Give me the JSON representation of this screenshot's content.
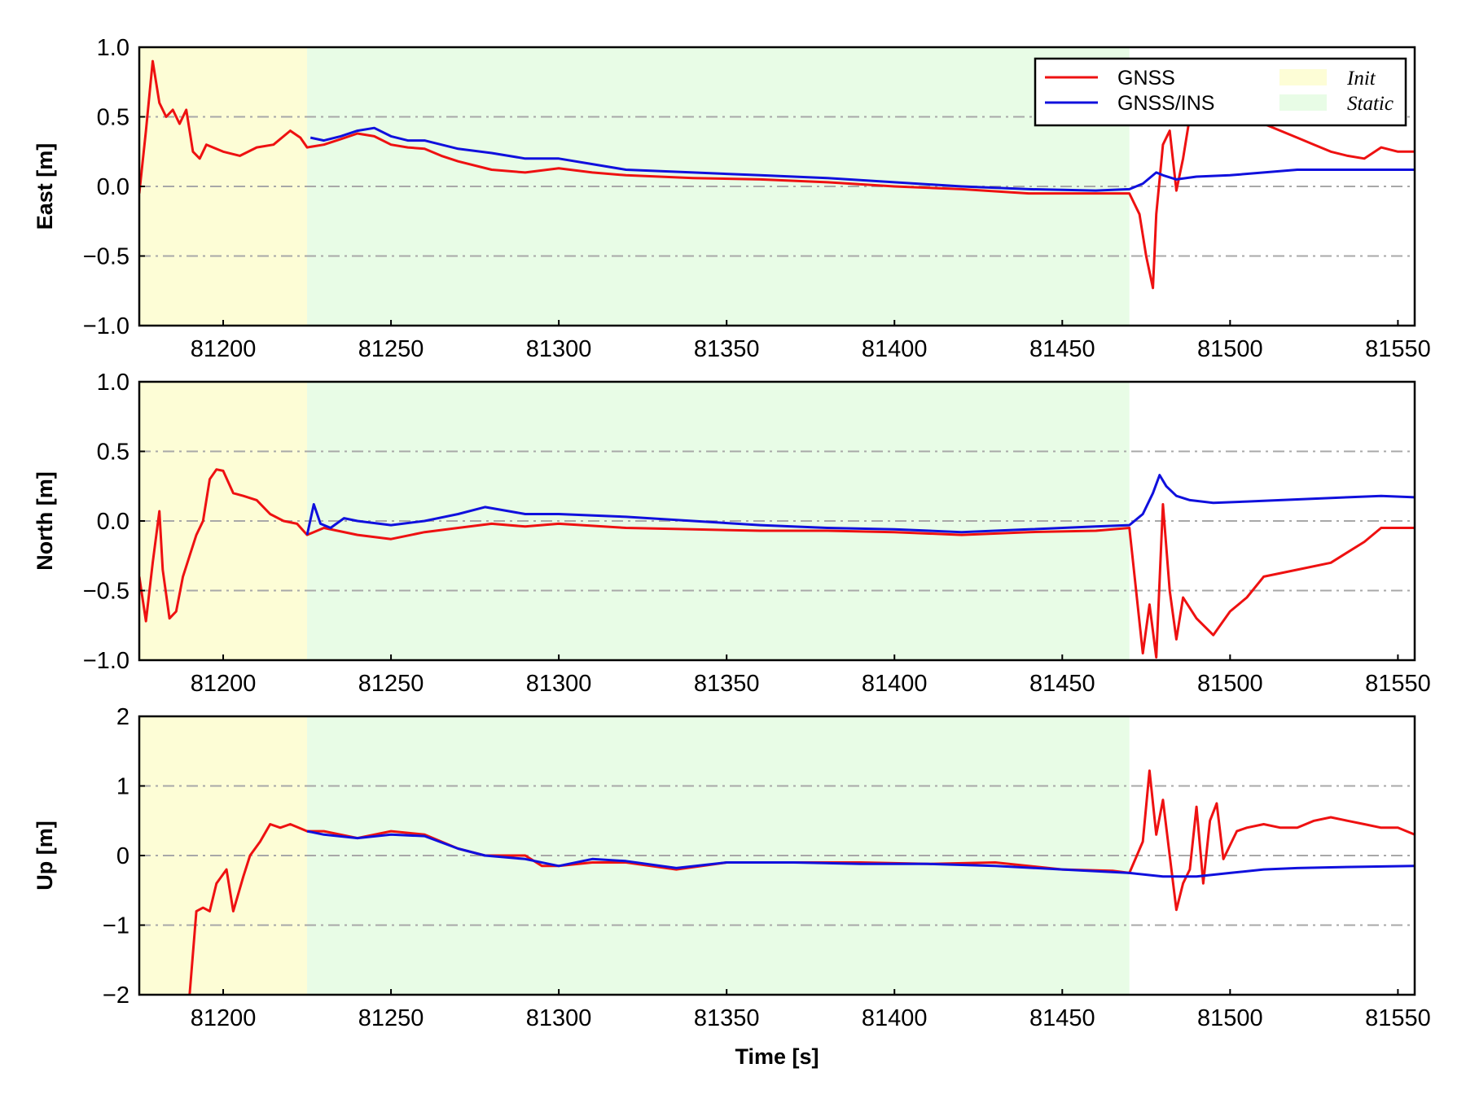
{
  "colors": {
    "gnss": "#ee1111",
    "gnss_ins": "#1010dd",
    "init_region": "#fdfdd6",
    "static_region": "#e8fce6",
    "grid": "#a8a8a8"
  },
  "chart_data": [
    {
      "type": "line",
      "ylabel": "East [m]",
      "xlabel": "",
      "xlim": [
        81175,
        81555
      ],
      "ylim": [
        -1.0,
        1.0
      ],
      "xticks": [
        81200,
        81250,
        81300,
        81350,
        81400,
        81450,
        81500,
        81550
      ],
      "xtick_labels": [
        "81200",
        "81250",
        "81300",
        "81350",
        "81400",
        "81450",
        "81500",
        "81550"
      ],
      "yticks": [
        -1.0,
        -0.5,
        0.0,
        0.5,
        1.0
      ],
      "ytick_labels": [
        "−1.0",
        "−0.5",
        "0.0",
        "0.5",
        "1.0"
      ],
      "grid": "y-dashdot",
      "regions": [
        {
          "name": "Init",
          "x": [
            81175,
            81225
          ]
        },
        {
          "name": "Static",
          "x": [
            81225,
            81470
          ]
        }
      ],
      "series": [
        {
          "name": "GNSS",
          "x": [
            81175,
            81177,
            81179,
            81181,
            81183,
            81185,
            81187,
            81189,
            81191,
            81193,
            81195,
            81200,
            81205,
            81210,
            81215,
            81220,
            81223,
            81225,
            81230,
            81235,
            81240,
            81245,
            81250,
            81255,
            81260,
            81265,
            81270,
            81280,
            81290,
            81300,
            81310,
            81320,
            81340,
            81360,
            81380,
            81400,
            81420,
            81440,
            81460,
            81470,
            81473,
            81475,
            81477,
            81478,
            81480,
            81482,
            81484,
            81486,
            81488,
            81490,
            81493,
            81497,
            81500,
            81505,
            81510,
            81515,
            81520,
            81525,
            81530,
            81535,
            81540,
            81545,
            81550,
            81555
          ],
          "y": [
            -0.05,
            0.4,
            0.9,
            0.6,
            0.5,
            0.55,
            0.45,
            0.55,
            0.25,
            0.2,
            0.3,
            0.25,
            0.22,
            0.28,
            0.3,
            0.4,
            0.35,
            0.28,
            0.3,
            0.34,
            0.38,
            0.36,
            0.3,
            0.28,
            0.27,
            0.22,
            0.18,
            0.12,
            0.1,
            0.13,
            0.1,
            0.08,
            0.06,
            0.05,
            0.03,
            0.0,
            -0.02,
            -0.05,
            -0.05,
            -0.05,
            -0.2,
            -0.5,
            -0.73,
            -0.2,
            0.3,
            0.4,
            -0.03,
            0.2,
            0.5,
            0.55,
            0.45,
            0.5,
            0.48,
            0.5,
            0.45,
            0.4,
            0.35,
            0.3,
            0.25,
            0.22,
            0.2,
            0.28,
            0.25,
            0.25
          ]
        },
        {
          "name": "GNSS/INS",
          "x": [
            81226,
            81230,
            81235,
            81240,
            81245,
            81250,
            81255,
            81260,
            81265,
            81270,
            81280,
            81290,
            81300,
            81310,
            81320,
            81340,
            81360,
            81380,
            81400,
            81420,
            81440,
            81460,
            81470,
            81474,
            81478,
            81480,
            81484,
            81490,
            81500,
            81510,
            81520,
            81530,
            81540,
            81555
          ],
          "y": [
            0.35,
            0.33,
            0.36,
            0.4,
            0.42,
            0.36,
            0.33,
            0.33,
            0.3,
            0.27,
            0.24,
            0.2,
            0.2,
            0.16,
            0.12,
            0.1,
            0.08,
            0.06,
            0.03,
            0.0,
            -0.02,
            -0.03,
            -0.02,
            0.02,
            0.1,
            0.08,
            0.05,
            0.07,
            0.08,
            0.1,
            0.12,
            0.12,
            0.12,
            0.12
          ]
        }
      ]
    },
    {
      "type": "line",
      "ylabel": "North [m]",
      "xlabel": "",
      "xlim": [
        81175,
        81555
      ],
      "ylim": [
        -1.0,
        1.0
      ],
      "xticks": [
        81200,
        81250,
        81300,
        81350,
        81400,
        81450,
        81500,
        81550
      ],
      "xtick_labels": [
        "81200",
        "81250",
        "81300",
        "81350",
        "81400",
        "81450",
        "81500",
        "81550"
      ],
      "yticks": [
        -1.0,
        -0.5,
        0.0,
        0.5,
        1.0
      ],
      "ytick_labels": [
        "−1.0",
        "−0.5",
        "0.0",
        "0.5",
        "1.0"
      ],
      "grid": "y-dashdot",
      "regions": [
        {
          "name": "Init",
          "x": [
            81175,
            81225
          ]
        },
        {
          "name": "Static",
          "x": [
            81225,
            81470
          ]
        }
      ],
      "series": [
        {
          "name": "GNSS",
          "x": [
            81175,
            81177,
            81179,
            81181,
            81182,
            81184,
            81186,
            81188,
            81190,
            81192,
            81194,
            81196,
            81198,
            81200,
            81203,
            81206,
            81210,
            81214,
            81218,
            81222,
            81225,
            81230,
            81240,
            81250,
            81260,
            81270,
            81280,
            81290,
            81300,
            81320,
            81340,
            81360,
            81380,
            81400,
            81420,
            81440,
            81460,
            81470,
            81474,
            81476,
            81478,
            81480,
            81482,
            81484,
            81486,
            81490,
            81495,
            81500,
            81505,
            81510,
            81520,
            81530,
            81540,
            81545,
            81550,
            81555
          ],
          "y": [
            -0.4,
            -0.72,
            -0.3,
            0.07,
            -0.35,
            -0.7,
            -0.65,
            -0.4,
            -0.25,
            -0.1,
            0.0,
            0.3,
            0.37,
            0.36,
            0.2,
            0.18,
            0.15,
            0.05,
            0.0,
            -0.02,
            -0.1,
            -0.05,
            -0.1,
            -0.13,
            -0.08,
            -0.05,
            -0.02,
            -0.04,
            -0.02,
            -0.05,
            -0.06,
            -0.07,
            -0.07,
            -0.08,
            -0.1,
            -0.08,
            -0.07,
            -0.05,
            -0.95,
            -0.6,
            -0.98,
            0.12,
            -0.5,
            -0.85,
            -0.55,
            -0.7,
            -0.82,
            -0.65,
            -0.55,
            -0.4,
            -0.35,
            -0.3,
            -0.15,
            -0.05,
            -0.05,
            -0.05
          ]
        },
        {
          "name": "GNSS/INS",
          "x": [
            81225,
            81227,
            81229,
            81232,
            81236,
            81240,
            81250,
            81260,
            81270,
            81278,
            81290,
            81300,
            81320,
            81340,
            81360,
            81380,
            81400,
            81420,
            81440,
            81460,
            81470,
            81474,
            81477,
            81479,
            81481,
            81484,
            81488,
            81495,
            81505,
            81515,
            81525,
            81535,
            81545,
            81555
          ],
          "y": [
            -0.1,
            0.12,
            -0.02,
            -0.05,
            0.02,
            0.0,
            -0.03,
            0.0,
            0.05,
            0.1,
            0.05,
            0.05,
            0.03,
            0.0,
            -0.03,
            -0.05,
            -0.06,
            -0.08,
            -0.06,
            -0.04,
            -0.03,
            0.05,
            0.2,
            0.33,
            0.25,
            0.18,
            0.15,
            0.13,
            0.14,
            0.15,
            0.16,
            0.17,
            0.18,
            0.17
          ]
        }
      ]
    },
    {
      "type": "line",
      "ylabel": "Up [m]",
      "xlabel": "Time [s]",
      "xlim": [
        81175,
        81555
      ],
      "ylim": [
        -2,
        2
      ],
      "xticks": [
        81200,
        81250,
        81300,
        81350,
        81400,
        81450,
        81500,
        81550
      ],
      "xtick_labels": [
        "81200",
        "81250",
        "81300",
        "81350",
        "81400",
        "81450",
        "81500",
        "81550"
      ],
      "yticks": [
        -2,
        -1,
        0,
        1,
        2
      ],
      "ytick_labels": [
        "−2",
        "−1",
        "0",
        "1",
        "2"
      ],
      "grid": "y-dashdot",
      "regions": [
        {
          "name": "Init",
          "x": [
            81175,
            81225
          ]
        },
        {
          "name": "Static",
          "x": [
            81225,
            81470
          ]
        }
      ],
      "series": [
        {
          "name": "GNSS",
          "x": [
            81190,
            81192,
            81194,
            81196,
            81198,
            81201,
            81203,
            81206,
            81208,
            81211,
            81214,
            81217,
            81220,
            81225,
            81230,
            81240,
            81250,
            81260,
            81270,
            81278,
            81290,
            81295,
            81300,
            81310,
            81320,
            81335,
            81350,
            81370,
            81390,
            81410,
            81430,
            81450,
            81465,
            81470,
            81474,
            81476,
            81478,
            81480,
            81482,
            81484,
            81486,
            81488,
            81490,
            81492,
            81494,
            81496,
            81498,
            81502,
            81505,
            81510,
            81515,
            81520,
            81525,
            81530,
            81535,
            81540,
            81545,
            81550,
            81555
          ],
          "y": [
            -2.0,
            -0.8,
            -0.75,
            -0.8,
            -0.4,
            -0.2,
            -0.8,
            -0.3,
            0.0,
            0.2,
            0.45,
            0.4,
            0.45,
            0.35,
            0.35,
            0.25,
            0.35,
            0.3,
            0.1,
            0.0,
            0.0,
            -0.15,
            -0.15,
            -0.1,
            -0.1,
            -0.2,
            -0.1,
            -0.1,
            -0.1,
            -0.12,
            -0.1,
            -0.2,
            -0.22,
            -0.25,
            0.2,
            1.22,
            0.3,
            0.8,
            0.0,
            -0.78,
            -0.4,
            -0.2,
            0.7,
            -0.4,
            0.5,
            0.75,
            -0.05,
            0.35,
            0.4,
            0.45,
            0.4,
            0.4,
            0.5,
            0.55,
            0.5,
            0.45,
            0.4,
            0.4,
            0.3
          ]
        },
        {
          "name": "GNSS/INS",
          "x": [
            81225,
            81230,
            81240,
            81250,
            81260,
            81270,
            81278,
            81290,
            81300,
            81310,
            81320,
            81335,
            81350,
            81370,
            81390,
            81410,
            81430,
            81450,
            81470,
            81480,
            81490,
            81500,
            81510,
            81520,
            81530,
            81540,
            81555
          ],
          "y": [
            0.35,
            0.3,
            0.25,
            0.3,
            0.28,
            0.1,
            0.0,
            -0.05,
            -0.15,
            -0.05,
            -0.08,
            -0.18,
            -0.1,
            -0.1,
            -0.12,
            -0.12,
            -0.15,
            -0.2,
            -0.25,
            -0.3,
            -0.3,
            -0.25,
            -0.2,
            -0.18,
            -0.17,
            -0.16,
            -0.15
          ]
        }
      ]
    }
  ],
  "legend": {
    "placement": "top-right",
    "entries": [
      {
        "label": "GNSS",
        "kind": "line",
        "color": "#ee1111"
      },
      {
        "label": "GNSS/INS",
        "kind": "line",
        "color": "#1010dd"
      },
      {
        "label": "Init",
        "kind": "patch",
        "color": "#fdfdd6"
      },
      {
        "label": "Static",
        "kind": "patch",
        "color": "#e8fce6"
      }
    ]
  }
}
